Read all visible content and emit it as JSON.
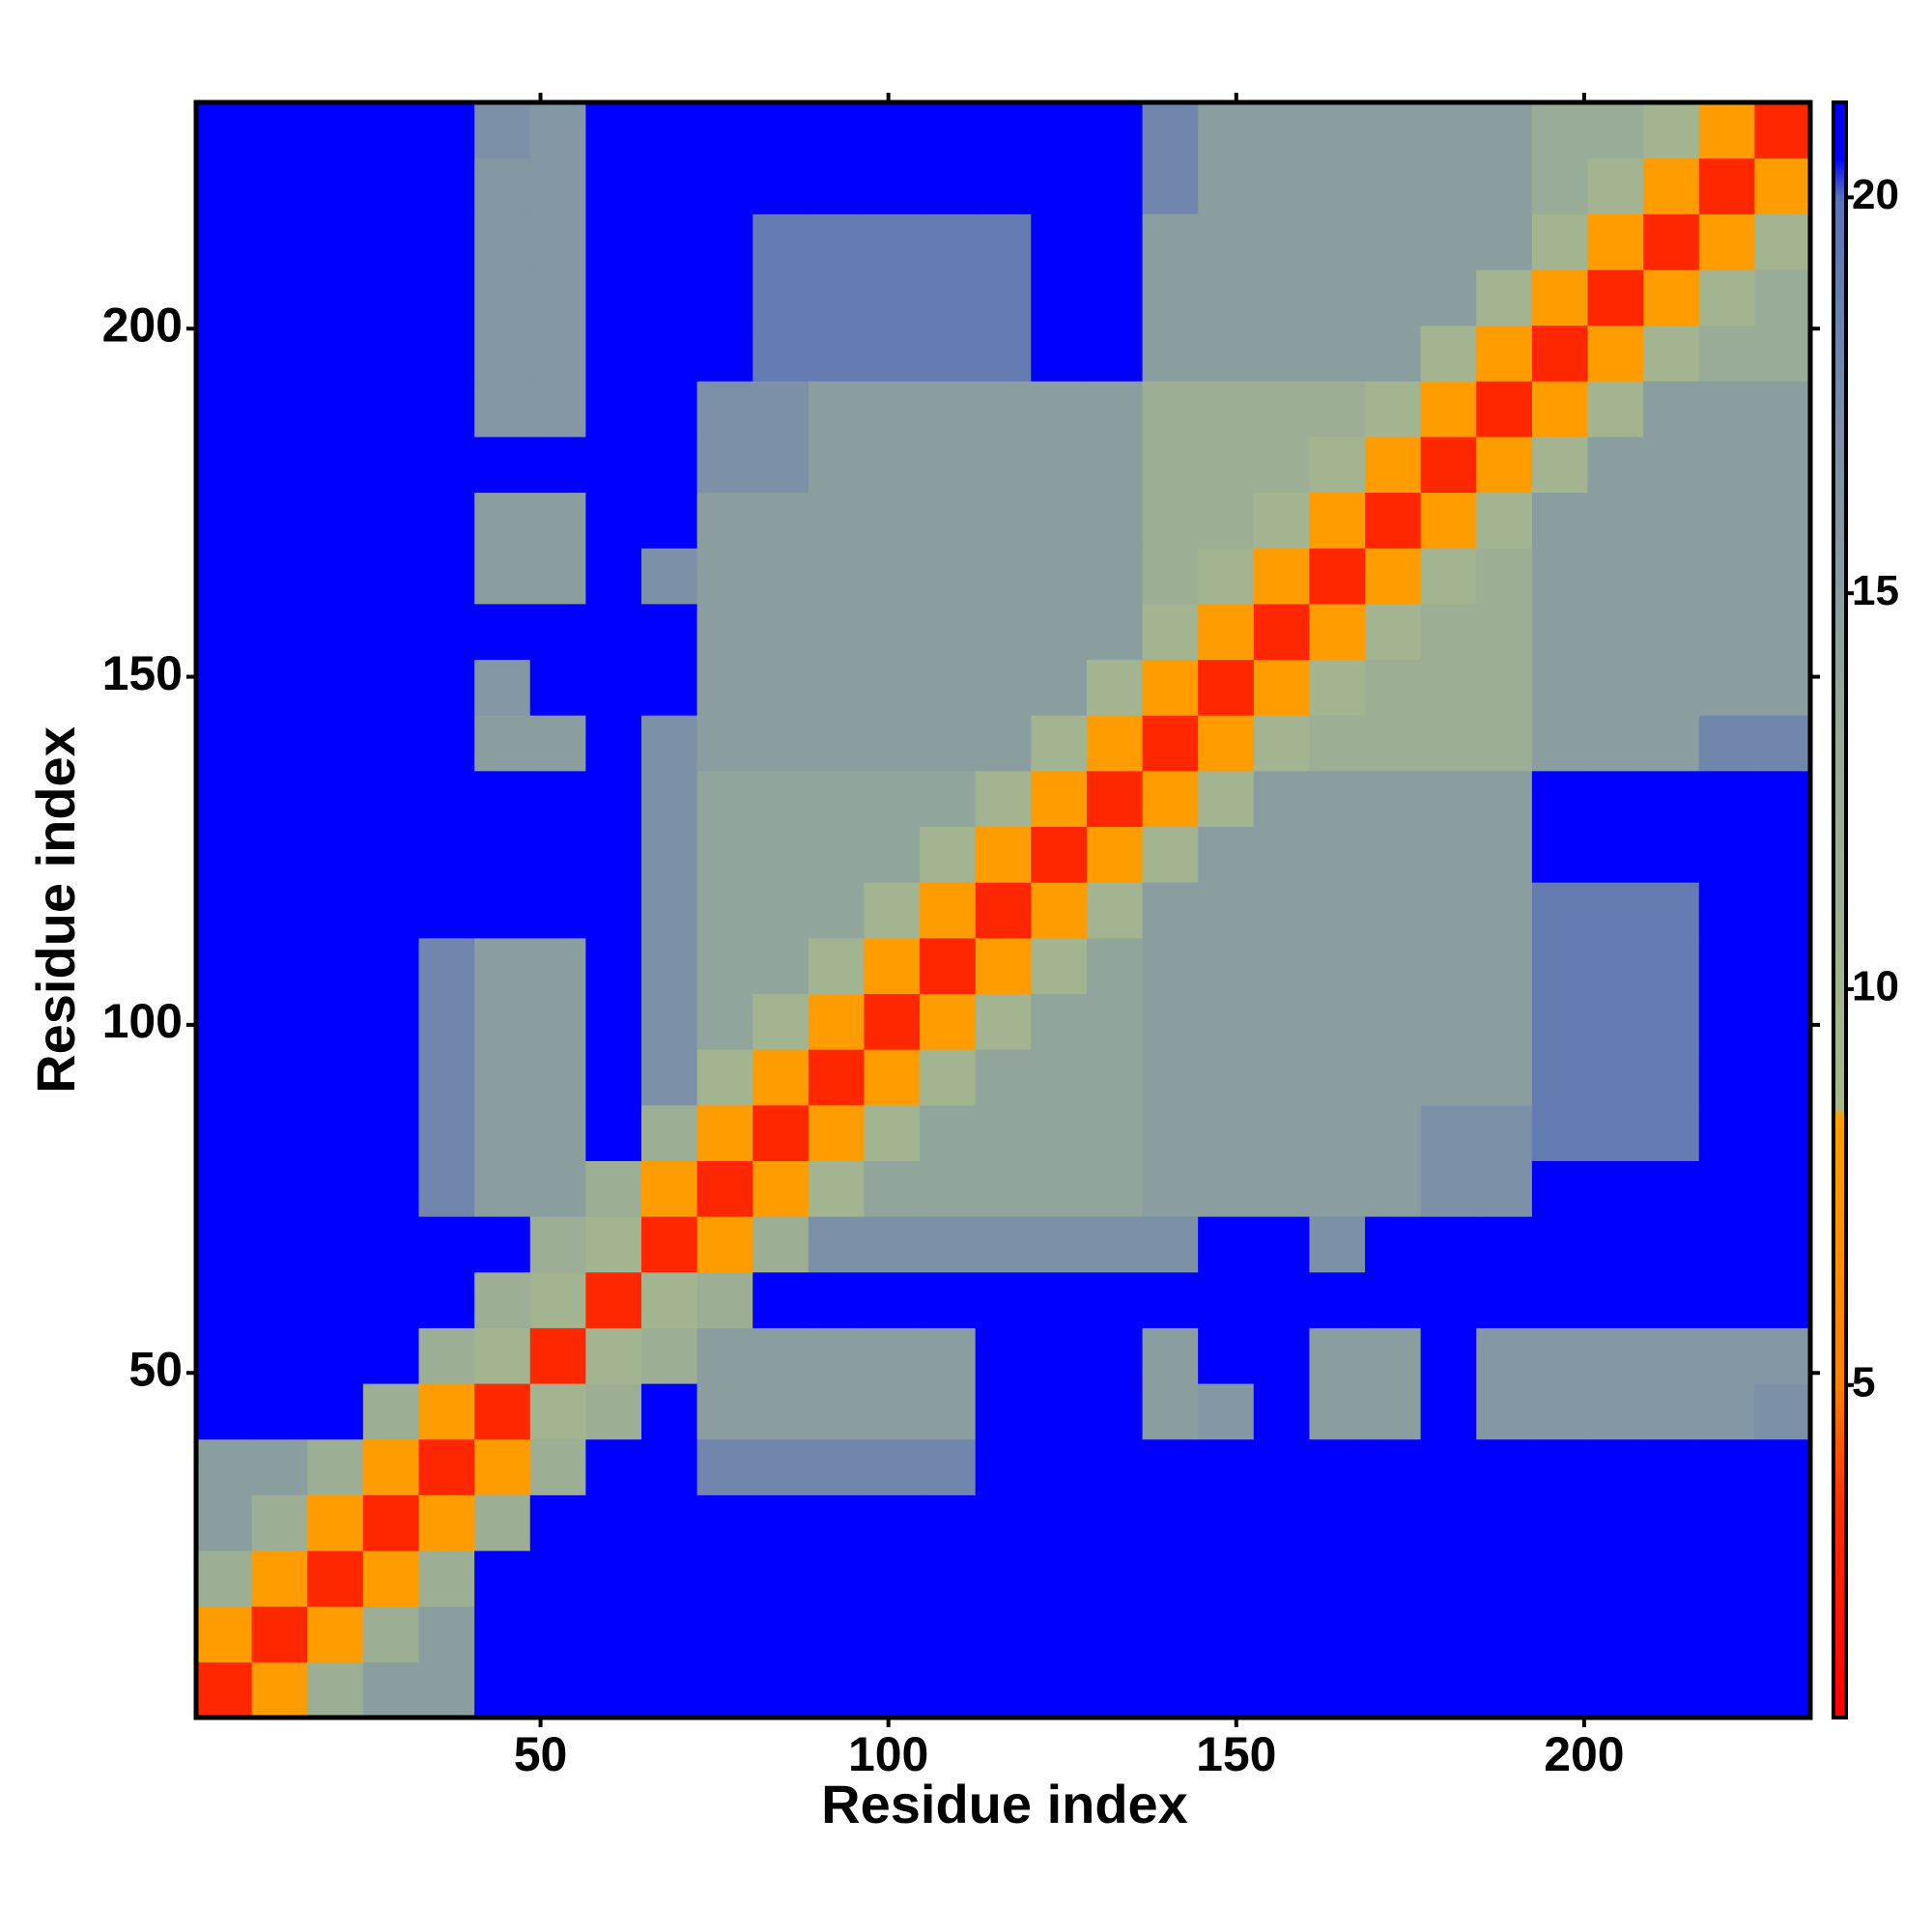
{
  "chart_data": {
    "type": "heatmap",
    "x_label": "Residue index",
    "y_label": "Residue index",
    "xlim": [
      0.5,
      232.5
    ],
    "ylim": [
      0.5,
      232.5
    ],
    "xticks": [
      50,
      100,
      150,
      200
    ],
    "yticks": [
      50,
      100,
      150,
      200
    ],
    "zlim": [
      0.8,
      21.2
    ],
    "zticks": [
      5,
      10,
      15,
      20
    ],
    "colorscale": [
      {
        "value": 0.8,
        "color": "#ff0000"
      },
      {
        "value": 3.5,
        "color": "#ff3000"
      },
      {
        "value": 5,
        "color": "#ff8000"
      },
      {
        "value": 8.4,
        "color": "#ffa000"
      },
      {
        "value": 8.5,
        "color": "#a8b88c"
      },
      {
        "value": 13,
        "color": "#98ac98"
      },
      {
        "value": 17,
        "color": "#7c90a8"
      },
      {
        "value": 20,
        "color": "#5a72b8"
      },
      {
        "value": 20.5,
        "color": "#0000ff"
      },
      {
        "value": 21.2,
        "color": "#0000ff"
      }
    ],
    "xbins": [
      0.5,
      8.5,
      16.5,
      24.5,
      32.5,
      40.5,
      48.5,
      56.5,
      64.5,
      72.5,
      80.5,
      88.5,
      96.5,
      104.5,
      112.5,
      120.5,
      128.5,
      136.5,
      144.5,
      152.5,
      160.5,
      168.5,
      176.5,
      184.5,
      192.5,
      200.5,
      208.5,
      216.5,
      224.5,
      232.5
    ],
    "ybins": [
      0.5,
      8.5,
      16.5,
      24.5,
      32.5,
      40.5,
      48.5,
      56.5,
      64.5,
      72.5,
      80.5,
      88.5,
      96.5,
      104.5,
      112.5,
      120.5,
      128.5,
      136.5,
      144.5,
      152.5,
      160.5,
      168.5,
      176.5,
      184.5,
      192.5,
      200.5,
      208.5,
      216.5,
      224.5,
      232.5
    ],
    "z": [
      [
        3,
        8,
        12,
        15,
        15,
        21,
        21,
        21,
        21,
        21,
        21,
        21,
        21,
        21,
        21,
        21,
        21,
        21,
        21,
        21,
        21,
        21,
        21,
        21,
        21,
        21,
        21,
        21,
        21
      ],
      [
        8,
        3,
        8,
        12,
        15,
        21,
        21,
        21,
        21,
        21,
        21,
        21,
        21,
        21,
        21,
        21,
        21,
        21,
        21,
        21,
        21,
        21,
        21,
        21,
        21,
        21,
        21,
        21,
        21
      ],
      [
        12,
        8,
        3,
        8,
        12,
        21,
        21,
        21,
        21,
        21,
        21,
        21,
        21,
        21,
        21,
        21,
        21,
        21,
        21,
        21,
        21,
        21,
        21,
        21,
        21,
        21,
        21,
        21,
        21
      ],
      [
        15,
        12,
        8,
        3,
        8,
        12,
        21,
        21,
        21,
        21,
        21,
        21,
        21,
        21,
        21,
        21,
        21,
        21,
        21,
        21,
        21,
        21,
        21,
        21,
        21,
        21,
        21,
        21,
        21
      ],
      [
        15,
        15,
        12,
        8,
        3,
        8,
        12,
        21,
        21,
        18,
        18,
        18,
        18,
        18,
        21,
        21,
        21,
        21,
        21,
        21,
        21,
        21,
        21,
        21,
        21,
        21,
        21,
        21,
        21
      ],
      [
        21,
        21,
        21,
        12,
        8,
        3,
        10,
        12,
        21,
        15,
        15,
        15,
        15,
        15,
        21,
        21,
        21,
        15,
        16,
        21,
        15,
        15,
        21,
        16,
        16,
        16,
        16,
        16,
        17
      ],
      [
        21,
        21,
        21,
        21,
        12,
        10,
        3,
        10,
        12,
        15,
        15,
        15,
        15,
        15,
        21,
        21,
        21,
        15,
        21,
        21,
        15,
        15,
        21,
        16,
        16,
        16,
        16,
        16,
        16
      ],
      [
        21,
        21,
        21,
        21,
        21,
        12,
        10,
        3,
        10,
        12,
        21,
        21,
        21,
        21,
        21,
        21,
        21,
        21,
        21,
        21,
        21,
        21,
        21,
        21,
        21,
        21,
        21,
        21,
        21
      ],
      [
        21,
        21,
        21,
        21,
        21,
        21,
        12,
        10,
        3,
        8,
        12,
        17,
        17,
        17,
        17,
        17,
        17,
        17,
        21,
        21,
        17,
        21,
        21,
        21,
        21,
        21,
        21,
        21,
        21
      ],
      [
        21,
        21,
        21,
        21,
        18,
        15,
        15,
        12,
        8,
        3,
        8,
        10,
        14,
        14,
        14,
        14,
        14,
        15,
        15,
        15,
        15,
        15,
        17,
        17,
        21,
        21,
        21,
        21,
        21
      ],
      [
        21,
        21,
        21,
        21,
        18,
        15,
        15,
        21,
        12,
        8,
        3,
        8,
        10,
        14,
        14,
        14,
        14,
        15,
        15,
        15,
        15,
        15,
        17,
        17,
        19,
        19,
        19,
        21,
        21
      ],
      [
        21,
        21,
        21,
        21,
        18,
        15,
        15,
        21,
        17,
        10,
        8,
        3,
        8,
        10,
        14,
        14,
        14,
        15,
        15,
        15,
        15,
        15,
        15,
        15,
        19,
        19,
        19,
        21,
        21
      ],
      [
        21,
        21,
        21,
        21,
        18,
        15,
        15,
        21,
        17,
        14,
        10,
        8,
        3,
        8,
        10,
        14,
        14,
        15,
        15,
        15,
        15,
        15,
        15,
        15,
        19,
        19,
        19,
        21,
        21
      ],
      [
        21,
        21,
        21,
        21,
        18,
        15,
        15,
        21,
        17,
        14,
        14,
        10,
        8,
        3,
        8,
        10,
        14,
        15,
        15,
        15,
        15,
        15,
        15,
        15,
        19,
        19,
        19,
        21,
        21
      ],
      [
        21,
        21,
        21,
        21,
        21,
        21,
        21,
        21,
        17,
        14,
        14,
        14,
        10,
        8,
        3,
        8,
        10,
        15,
        15,
        15,
        15,
        15,
        15,
        15,
        19,
        19,
        19,
        21,
        21
      ],
      [
        21,
        21,
        21,
        21,
        21,
        21,
        21,
        21,
        17,
        14,
        14,
        14,
        14,
        10,
        8,
        3,
        8,
        10,
        15,
        15,
        15,
        15,
        15,
        15,
        21,
        21,
        21,
        21,
        21
      ],
      [
        21,
        21,
        21,
        21,
        21,
        21,
        21,
        21,
        17,
        14,
        14,
        14,
        14,
        14,
        10,
        8,
        3,
        8,
        10,
        15,
        15,
        15,
        15,
        15,
        21,
        21,
        21,
        21,
        21
      ],
      [
        21,
        21,
        21,
        21,
        21,
        15,
        15,
        21,
        17,
        15,
        15,
        15,
        15,
        15,
        15,
        10,
        8,
        3,
        8,
        10,
        12,
        12,
        12,
        12,
        15,
        15,
        15,
        18,
        18
      ],
      [
        21,
        21,
        21,
        21,
        21,
        16,
        21,
        21,
        21,
        15,
        15,
        15,
        15,
        15,
        15,
        15,
        10,
        8,
        3,
        8,
        10,
        12,
        12,
        12,
        15,
        15,
        15,
        15,
        15
      ],
      [
        21,
        21,
        21,
        21,
        21,
        21,
        21,
        21,
        21,
        15,
        15,
        15,
        15,
        15,
        15,
        15,
        15,
        10,
        8,
        3,
        8,
        10,
        12,
        12,
        15,
        15,
        15,
        15,
        15
      ],
      [
        21,
        21,
        21,
        21,
        21,
        15,
        15,
        21,
        17,
        15,
        15,
        15,
        15,
        15,
        15,
        15,
        15,
        12,
        10,
        8,
        3,
        8,
        10,
        12,
        15,
        15,
        15,
        15,
        15
      ],
      [
        21,
        21,
        21,
        21,
        21,
        15,
        15,
        21,
        21,
        15,
        15,
        15,
        15,
        15,
        15,
        15,
        15,
        12,
        12,
        10,
        8,
        3,
        8,
        10,
        15,
        15,
        15,
        15,
        15
      ],
      [
        21,
        21,
        21,
        21,
        21,
        21,
        21,
        21,
        21,
        17,
        17,
        15,
        15,
        15,
        15,
        15,
        15,
        12,
        12,
        12,
        10,
        8,
        3,
        8,
        10,
        15,
        15,
        15,
        15
      ],
      [
        21,
        21,
        21,
        21,
        21,
        16,
        16,
        21,
        21,
        17,
        17,
        15,
        15,
        15,
        15,
        15,
        15,
        12,
        12,
        12,
        12,
        10,
        8,
        3,
        8,
        10,
        15,
        15,
        15
      ],
      [
        21,
        21,
        21,
        21,
        21,
        16,
        16,
        21,
        21,
        21,
        19,
        19,
        19,
        19,
        19,
        21,
        21,
        15,
        15,
        15,
        15,
        15,
        10,
        8,
        3,
        8,
        10,
        13,
        13
      ],
      [
        21,
        21,
        21,
        21,
        21,
        16,
        16,
        21,
        21,
        21,
        19,
        19,
        19,
        19,
        19,
        21,
        21,
        15,
        15,
        15,
        15,
        15,
        15,
        10,
        8,
        3,
        8,
        10,
        13
      ],
      [
        21,
        21,
        21,
        21,
        21,
        16,
        16,
        21,
        21,
        21,
        19,
        19,
        19,
        19,
        19,
        21,
        21,
        15,
        15,
        15,
        15,
        15,
        15,
        15,
        10,
        8,
        3,
        8,
        10
      ],
      [
        21,
        21,
        21,
        21,
        21,
        16,
        16,
        21,
        21,
        21,
        21,
        21,
        21,
        21,
        21,
        21,
        21,
        18,
        15,
        15,
        15,
        15,
        15,
        15,
        13,
        10,
        8,
        3,
        8
      ],
      [
        21,
        21,
        21,
        21,
        21,
        17,
        16,
        21,
        21,
        21,
        21,
        21,
        21,
        21,
        21,
        21,
        21,
        18,
        15,
        15,
        15,
        15,
        15,
        15,
        13,
        13,
        10,
        8,
        3
      ]
    ]
  }
}
